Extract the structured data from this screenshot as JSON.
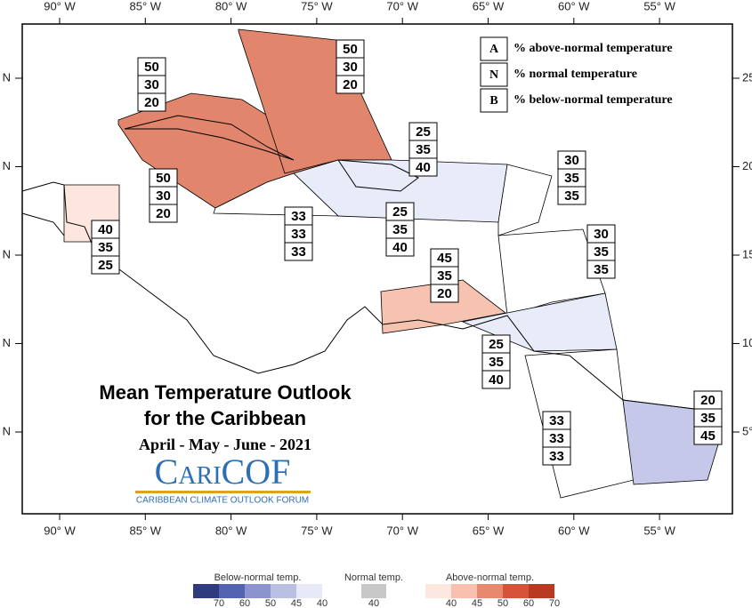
{
  "axis": {
    "top": [
      "90° W",
      "85° W",
      "80° W",
      "75° W",
      "70° W",
      "65° W",
      "60° W",
      "55° W"
    ],
    "bottom": [
      "90° W",
      "85° W",
      "80° W",
      "75° W",
      "70° W",
      "65° W",
      "60° W",
      "55° W"
    ],
    "left": [
      "N",
      "N",
      "N",
      "N",
      "N"
    ],
    "right": [
      "25",
      "20",
      "15",
      "10",
      "5°"
    ]
  },
  "legend": [
    {
      "key": "A",
      "text": "% above-normal temperature"
    },
    {
      "key": "N",
      "text": "% normal temperature"
    },
    {
      "key": "B",
      "text": "% below-normal temperature"
    }
  ],
  "title": {
    "line1": "Mean Temperature Outlook",
    "line2": "for the Caribbean",
    "period": "April - May - June - 2021",
    "logo": "CariCOF",
    "logo_subtitle": "CARIBBEAN CLIMATE OUTLOOK FORUM"
  },
  "regions": [
    {
      "values": [
        50,
        30,
        20
      ],
      "color": "#e1866d"
    },
    {
      "values": [
        50,
        30,
        20
      ]
    },
    {
      "values": [
        50,
        30,
        20
      ],
      "color": "#e1866d"
    },
    {
      "values": [
        25,
        35,
        40
      ],
      "color": "#e8ecf8"
    },
    {
      "values": [
        25,
        35,
        40
      ]
    },
    {
      "values": [
        33,
        33,
        33
      ],
      "color": "#ffffff"
    },
    {
      "values": [
        40,
        35,
        25
      ],
      "color": "#fde6de"
    },
    {
      "values": [
        30,
        35,
        35
      ],
      "color": "#ffffff"
    },
    {
      "values": [
        30,
        35,
        35
      ],
      "color": "#ffffff"
    },
    {
      "values": [
        45,
        35,
        20
      ],
      "color": "#f7c3b1"
    },
    {
      "values": [
        25,
        35,
        40
      ],
      "color": "#e8ecf8"
    },
    {
      "values": [
        33,
        33,
        33
      ],
      "color": "#ffffff"
    },
    {
      "values": [
        20,
        35,
        45
      ],
      "color": "#c5c8e8"
    }
  ],
  "color_scale": {
    "below": {
      "label": "Below-normal temp.",
      "ticks": [
        70,
        60,
        50,
        45,
        40
      ],
      "colors": [
        "#2f3b7c",
        "#5163b1",
        "#8b94cd",
        "#bac0e4",
        "#e7eaf6"
      ]
    },
    "normal": {
      "label": "Normal temp.",
      "ticks": [
        40
      ],
      "colors": [
        "#c8c8c8"
      ]
    },
    "above": {
      "label": "Above-normal temp.",
      "ticks": [
        40,
        45,
        50,
        60,
        70
      ],
      "colors": [
        "#fde8e0",
        "#f8c0ad",
        "#e8896f",
        "#d4533a",
        "#b83a22"
      ]
    }
  }
}
